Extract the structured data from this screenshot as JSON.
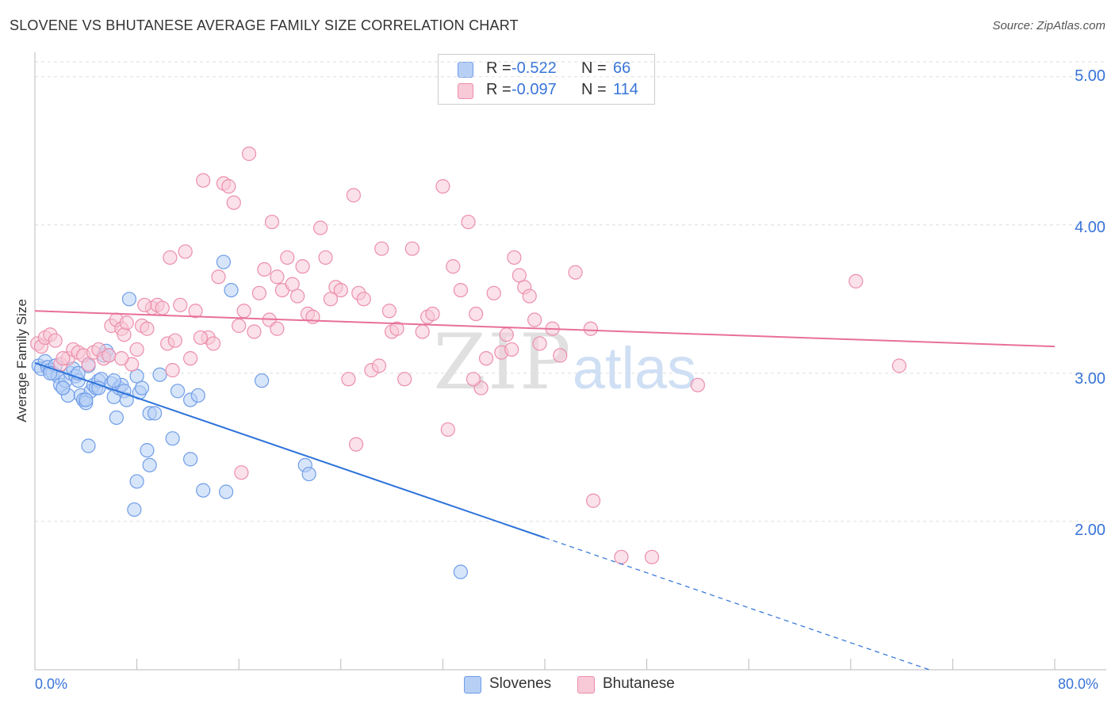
{
  "chart_data": {
    "type": "scatter",
    "title": "SLOVENE VS BHUTANESE AVERAGE FAMILY SIZE CORRELATION CHART",
    "source": "Source: ZipAtlas.com",
    "xlabel": "",
    "ylabel": "Average Family Size",
    "xlim": [
      0,
      80
    ],
    "ylim": [
      1.0,
      5.1
    ],
    "x_tick_labels": [
      "0.0%",
      "80.0%"
    ],
    "y_tick_labels": [
      "5.00",
      "4.00",
      "3.00",
      "2.00"
    ],
    "y_tick_values": [
      5.0,
      4.0,
      3.0,
      2.0
    ],
    "grid": true,
    "watermark": {
      "zip": "ZIP",
      "atlas": "atlas"
    },
    "legend": {
      "rows": [
        {
          "r_label": "R =",
          "r_value": "-0.522",
          "n_label": "N =",
          "n_value": "66"
        },
        {
          "r_label": "R =",
          "r_value": "-0.097",
          "n_label": "N =",
          "n_value": "114"
        }
      ]
    },
    "series": [
      {
        "name": "Slovenes",
        "color": "#6f9de8",
        "fill": "#b7cff5",
        "line_color": "#2d72d9",
        "trend": {
          "x0": 0,
          "y0": 3.07,
          "x1": 40,
          "y1": 1.89,
          "dash_to_x": 80,
          "dash_to_y": 0.71
        },
        "points": [
          [
            0.3,
            3.05
          ],
          [
            0.5,
            3.03
          ],
          [
            0.8,
            3.08
          ],
          [
            1.0,
            3.04
          ],
          [
            1.2,
            3.02
          ],
          [
            1.4,
            3.0
          ],
          [
            1.6,
            3.05
          ],
          [
            1.8,
            2.98
          ],
          [
            2.0,
            2.92
          ],
          [
            2.2,
            2.9
          ],
          [
            2.4,
            2.95
          ],
          [
            2.6,
            2.85
          ],
          [
            2.8,
            3.0
          ],
          [
            3.0,
            3.03
          ],
          [
            3.2,
            2.98
          ],
          [
            3.4,
            2.95
          ],
          [
            3.6,
            2.85
          ],
          [
            3.8,
            2.82
          ],
          [
            4.0,
            2.8
          ],
          [
            4.2,
            3.05
          ],
          [
            4.4,
            2.88
          ],
          [
            4.6,
            2.92
          ],
          [
            4.8,
            2.9
          ],
          [
            5.0,
            2.95
          ],
          [
            5.2,
            2.96
          ],
          [
            5.4,
            3.12
          ],
          [
            5.6,
            3.15
          ],
          [
            5.8,
            3.12
          ],
          [
            6.0,
            2.93
          ],
          [
            6.2,
            2.84
          ],
          [
            6.4,
            2.7
          ],
          [
            6.6,
            2.9
          ],
          [
            6.8,
            2.92
          ],
          [
            7.0,
            2.88
          ],
          [
            7.2,
            2.82
          ],
          [
            7.4,
            3.5
          ],
          [
            8.0,
            2.98
          ],
          [
            8.2,
            2.87
          ],
          [
            8.4,
            2.9
          ],
          [
            9.0,
            2.73
          ],
          [
            9.4,
            2.73
          ],
          [
            9.8,
            2.99
          ],
          [
            10.8,
            2.56
          ],
          [
            11.2,
            2.88
          ],
          [
            12.2,
            2.82
          ],
          [
            12.8,
            2.85
          ],
          [
            14.8,
            3.75
          ],
          [
            15.4,
            3.56
          ],
          [
            17.8,
            2.95
          ],
          [
            21.2,
            2.38
          ],
          [
            21.5,
            2.32
          ],
          [
            4.2,
            2.51
          ],
          [
            8.8,
            2.48
          ],
          [
            9.0,
            2.38
          ],
          [
            8.0,
            2.27
          ],
          [
            7.8,
            2.08
          ],
          [
            12.2,
            2.42
          ],
          [
            13.2,
            2.21
          ],
          [
            15.0,
            2.2
          ],
          [
            33.4,
            1.66
          ],
          [
            1.2,
            3.0
          ],
          [
            2.2,
            2.9
          ],
          [
            3.4,
            3.0
          ],
          [
            4.0,
            2.82
          ],
          [
            5.0,
            2.9
          ],
          [
            6.2,
            2.95
          ]
        ]
      },
      {
        "name": "Bhutanese",
        "color": "#ec8fac",
        "fill": "#f8c9d7",
        "line_color": "#e8709a",
        "trend": {
          "x0": 0,
          "y0": 3.42,
          "x1": 80,
          "y1": 3.18
        },
        "points": [
          [
            0.2,
            3.2
          ],
          [
            0.5,
            3.18
          ],
          [
            0.8,
            3.24
          ],
          [
            1.2,
            3.26
          ],
          [
            1.6,
            3.22
          ],
          [
            2.0,
            3.06
          ],
          [
            2.6,
            3.1
          ],
          [
            3.0,
            3.16
          ],
          [
            3.4,
            3.14
          ],
          [
            3.8,
            3.12
          ],
          [
            4.2,
            3.06
          ],
          [
            4.6,
            3.14
          ],
          [
            5.0,
            3.16
          ],
          [
            5.4,
            3.1
          ],
          [
            5.8,
            3.12
          ],
          [
            6.0,
            3.32
          ],
          [
            6.4,
            3.36
          ],
          [
            6.8,
            3.3
          ],
          [
            7.0,
            3.26
          ],
          [
            7.2,
            3.34
          ],
          [
            7.6,
            3.06
          ],
          [
            8.0,
            3.16
          ],
          [
            8.4,
            3.32
          ],
          [
            8.8,
            3.3
          ],
          [
            9.2,
            3.44
          ],
          [
            9.6,
            3.46
          ],
          [
            10.0,
            3.44
          ],
          [
            10.4,
            3.2
          ],
          [
            10.6,
            3.78
          ],
          [
            11.0,
            3.22
          ],
          [
            11.4,
            3.46
          ],
          [
            11.8,
            3.82
          ],
          [
            12.2,
            3.1
          ],
          [
            12.6,
            3.42
          ],
          [
            13.2,
            4.3
          ],
          [
            13.6,
            3.24
          ],
          [
            14.0,
            3.2
          ],
          [
            14.4,
            3.65
          ],
          [
            14.8,
            4.28
          ],
          [
            15.2,
            4.26
          ],
          [
            15.6,
            4.15
          ],
          [
            16.0,
            3.32
          ],
          [
            16.4,
            3.42
          ],
          [
            16.8,
            4.48
          ],
          [
            17.2,
            3.28
          ],
          [
            17.6,
            3.54
          ],
          [
            18.0,
            3.7
          ],
          [
            18.4,
            3.36
          ],
          [
            18.6,
            4.02
          ],
          [
            19.0,
            3.65
          ],
          [
            19.4,
            3.56
          ],
          [
            19.8,
            3.78
          ],
          [
            20.2,
            3.6
          ],
          [
            20.6,
            3.52
          ],
          [
            21.0,
            3.72
          ],
          [
            21.4,
            3.4
          ],
          [
            21.8,
            3.38
          ],
          [
            22.4,
            3.98
          ],
          [
            22.8,
            3.78
          ],
          [
            23.2,
            3.5
          ],
          [
            23.6,
            3.58
          ],
          [
            24.0,
            3.56
          ],
          [
            24.6,
            2.96
          ],
          [
            25.0,
            4.2
          ],
          [
            25.4,
            3.54
          ],
          [
            25.8,
            3.5
          ],
          [
            26.4,
            3.02
          ],
          [
            27.2,
            3.84
          ],
          [
            27.8,
            3.42
          ],
          [
            28.0,
            3.28
          ],
          [
            28.4,
            3.3
          ],
          [
            29.0,
            2.96
          ],
          [
            29.6,
            3.84
          ],
          [
            30.4,
            3.28
          ],
          [
            30.8,
            3.38
          ],
          [
            31.2,
            3.4
          ],
          [
            32.0,
            4.26
          ],
          [
            32.4,
            2.62
          ],
          [
            32.8,
            3.72
          ],
          [
            33.4,
            3.56
          ],
          [
            34.0,
            4.02
          ],
          [
            34.6,
            3.4
          ],
          [
            35.0,
            2.9
          ],
          [
            35.4,
            3.1
          ],
          [
            36.0,
            3.54
          ],
          [
            36.6,
            3.14
          ],
          [
            37.0,
            3.26
          ],
          [
            37.6,
            3.78
          ],
          [
            38.0,
            3.66
          ],
          [
            38.4,
            3.58
          ],
          [
            38.8,
            3.52
          ],
          [
            39.2,
            3.36
          ],
          [
            39.6,
            3.2
          ],
          [
            40.6,
            3.3
          ],
          [
            41.2,
            3.12
          ],
          [
            42.4,
            3.68
          ],
          [
            43.6,
            3.3
          ],
          [
            43.8,
            2.14
          ],
          [
            46.0,
            1.76
          ],
          [
            48.4,
            1.76
          ],
          [
            64.4,
            3.62
          ],
          [
            67.8,
            3.05
          ],
          [
            34.4,
            2.96
          ],
          [
            37.4,
            3.16
          ],
          [
            52.0,
            2.92
          ],
          [
            8.6,
            3.46
          ],
          [
            2.2,
            3.1
          ],
          [
            10.8,
            3.02
          ],
          [
            16.2,
            2.33
          ],
          [
            25.2,
            2.52
          ],
          [
            6.8,
            3.1
          ],
          [
            13.0,
            3.24
          ],
          [
            19.0,
            3.3
          ],
          [
            27.0,
            3.05
          ]
        ]
      }
    ]
  }
}
